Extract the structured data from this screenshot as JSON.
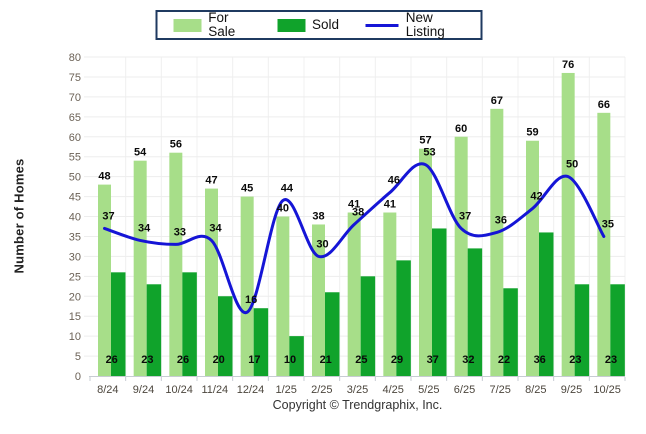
{
  "footer": {
    "copyright": "Copyright © Trendgraphix, Inc."
  },
  "legend": {
    "position": "top"
  },
  "chart_data": {
    "type": "combo",
    "title": "",
    "xlabel": "",
    "ylabel": "Number of Homes",
    "ylim": [
      0,
      80
    ],
    "ytick_step": 5,
    "grid": true,
    "legend_position": "top-center",
    "categories": [
      "8/24",
      "9/24",
      "10/24",
      "11/24",
      "12/24",
      "1/25",
      "2/25",
      "3/25",
      "4/25",
      "5/25",
      "6/25",
      "7/25",
      "8/25",
      "9/25",
      "10/25"
    ],
    "series": [
      {
        "name": "For Sale",
        "type": "bar",
        "color": "#a7de89",
        "values": [
          48,
          54,
          56,
          47,
          45,
          40,
          38,
          41,
          41,
          57,
          60,
          67,
          59,
          76,
          66
        ]
      },
      {
        "name": "Sold",
        "type": "bar",
        "color": "#10a32b",
        "values": [
          26,
          23,
          26,
          20,
          17,
          10,
          21,
          25,
          29,
          37,
          32,
          22,
          36,
          23,
          23
        ]
      },
      {
        "name": "New Listing",
        "type": "line",
        "color": "#1515d6",
        "values": [
          37,
          34,
          33,
          34,
          16,
          44,
          30,
          38,
          46,
          53,
          37,
          36,
          42,
          50,
          35
        ]
      }
    ],
    "colors": {
      "grid_h": "#ededed",
      "grid_v": "#f0f0f0",
      "axis": "#c7ccd3",
      "legend_border": "#1f3a60"
    }
  }
}
